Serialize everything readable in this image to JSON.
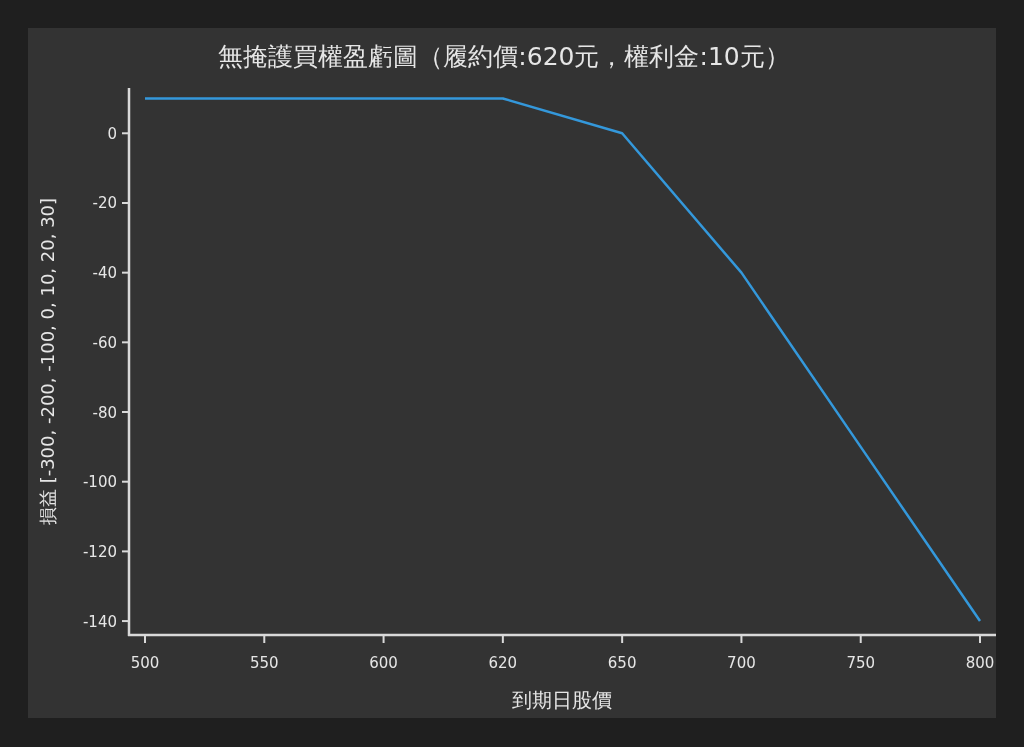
{
  "chart_data": {
    "type": "line",
    "title": "無掩護買權盈虧圖（履約價:620元，權利金:10元）",
    "xlabel": "到期日股價",
    "ylabel": "損益 [-300, -200, -100, 0, 10, 20, 30]",
    "categories": [
      "500",
      "550",
      "600",
      "620",
      "650",
      "700",
      "750",
      "800"
    ],
    "series": [
      {
        "color": "#3498db",
        "values": [
          10,
          10,
          10,
          10,
          0,
          -40,
          -90,
          -140
        ]
      }
    ],
    "ylim": [
      -144,
      13
    ],
    "yticks": [
      -140,
      -120,
      -100,
      -80,
      -60,
      -40,
      -20,
      0
    ],
    "line_style": "solid"
  }
}
